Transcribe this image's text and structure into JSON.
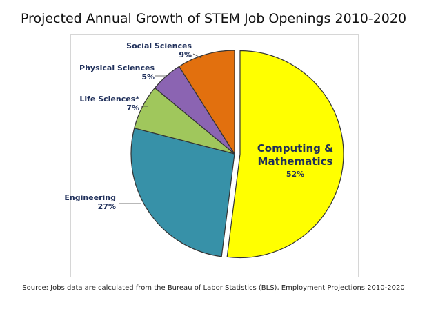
{
  "title": "Projected Annual Growth of STEM Job Openings 2010-2020",
  "source": "Source: Jobs data are calculated from the Bureau of Labor Statistics (BLS), Employment Projections 2010-2020",
  "chart_data": {
    "type": "pie",
    "slices": [
      {
        "label_lines": [
          "Computing &",
          "Mathematics"
        ],
        "pct_label": "52%",
        "value": 52,
        "color": "#ffff00"
      },
      {
        "label_lines": [
          "Engineering"
        ],
        "pct_label": "27%",
        "value": 27,
        "color": "#3791a8"
      },
      {
        "label_lines": [
          "Life Sciences*"
        ],
        "pct_label": "7%",
        "value": 7,
        "color": "#a0c75c"
      },
      {
        "label_lines": [
          "Physical Sciences"
        ],
        "pct_label": "5%",
        "value": 5,
        "color": "#8b64b2"
      },
      {
        "label_lines": [
          "Social Sciences"
        ],
        "pct_label": "9%",
        "value": 9,
        "color": "#e2700e"
      }
    ]
  }
}
